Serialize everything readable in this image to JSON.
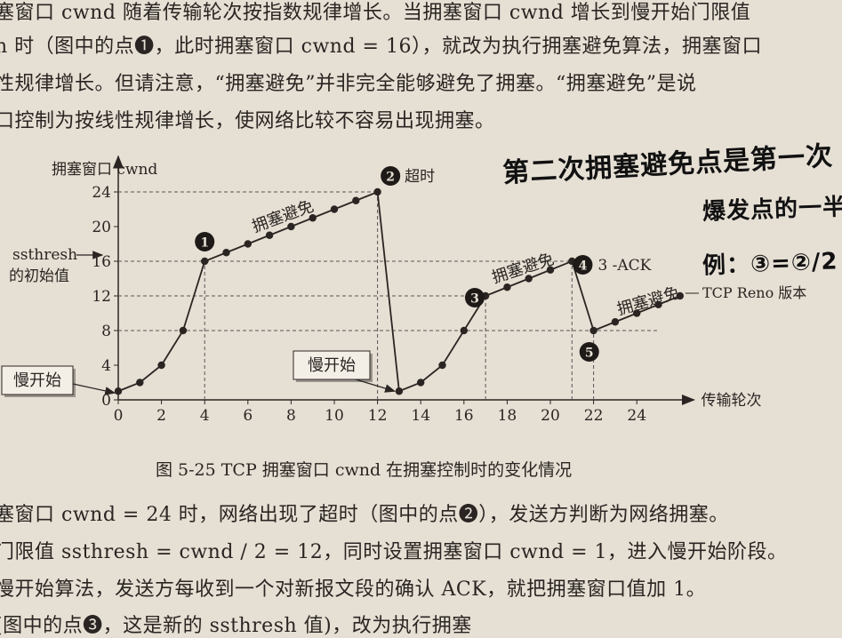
{
  "text_top": [
    "塞窗口 cwnd 随着传输轮次按指数规律增长。当拥塞窗口 cwnd 增长到慢开始门限值",
    "h 时（图中的点❶，此时拥塞窗口 cwnd = 16），就改为执行拥塞避免算法，拥塞窗口",
    "性规律增长。但请注意，“拥塞避免”并非完全能够避免了拥塞。“拥塞避免”是说",
    "口控制为按线性规律增长，使网络比较不容易出现拥塞。"
  ],
  "caption": "图 5-25   TCP 拥塞窗口 cwnd 在拥塞控制时的变化情况",
  "text_bottom": [
    "塞窗口 cwnd = 24 时，网络出现了超时（图中的点❷），发送方判断为网络拥塞。",
    "门限值 ssthresh = cwnd / 2 = 12，同时设置拥塞窗口 cwnd = 1，进入慢开始阶段。",
    "慢开始算法，发送方每收到一个对新报文段的确认 ACK，就把拥塞窗口值加 1。",
    "(图中的点❸，这是新的 ssthresh 值)，改为执行拥塞"
  ],
  "handwriting": {
    "line1": "第二次拥塞避免点是第一次",
    "line2": "爆发点的一半",
    "line3": "例：③=②/2"
  },
  "chart_data": {
    "type": "line",
    "ylabel": "拥塞窗口 cwnd",
    "xlabel": "传输轮次",
    "xlim": [
      0,
      25
    ],
    "ylim": [
      0,
      24
    ],
    "x_ticks": [
      0,
      2,
      4,
      6,
      8,
      10,
      12,
      14,
      16,
      18,
      20,
      22,
      24
    ],
    "y_ticks": [
      0,
      4,
      8,
      12,
      16,
      20,
      24
    ],
    "series": [
      {
        "x": [
          0,
          1,
          2,
          3,
          4,
          5,
          6,
          7,
          8,
          9,
          10,
          11,
          12,
          13,
          14,
          15,
          16,
          17,
          18,
          19,
          20,
          21,
          22,
          23,
          24,
          25,
          26
        ],
        "values": [
          1,
          2,
          4,
          8,
          16,
          17,
          18,
          19,
          20,
          21,
          22,
          23,
          24,
          1,
          2,
          4,
          8,
          12,
          13,
          14,
          15,
          16,
          8,
          9,
          10,
          11,
          12
        ]
      }
    ],
    "ssthresh_label": [
      "ssthresh",
      "的初始值"
    ],
    "annotations": {
      "p1": "❶",
      "p2": "❷",
      "p2_text": "超时",
      "p3": "❸",
      "p4": "❹",
      "p4_text": "3 -ACK",
      "p5": "❺",
      "ca1": "拥塞避免",
      "ca2": "拥塞避免",
      "ca3": "拥塞避免",
      "ss1": "慢开始",
      "ss2": "慢开始",
      "reno": "TCP Reno 版本"
    }
  }
}
